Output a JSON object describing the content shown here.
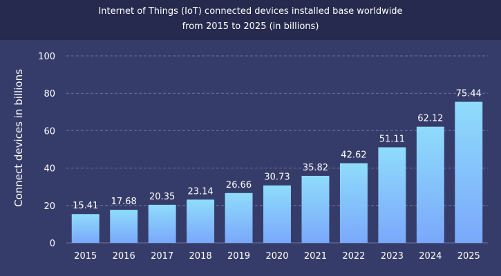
{
  "chart_data": {
    "type": "bar",
    "title": "Internet of Things (IoT) connected devices installed base worldwide",
    "subtitle": "from 2015 to 2025 (in billions)",
    "ylabel": "Connect devices in billions",
    "xlabel": "",
    "categories": [
      "2015",
      "2016",
      "2017",
      "2018",
      "2019",
      "2020",
      "2021",
      "2022",
      "2023",
      "2024",
      "2025"
    ],
    "values": [
      15.41,
      17.68,
      20.35,
      23.14,
      26.66,
      30.73,
      35.82,
      42.62,
      51.11,
      62.12,
      75.44
    ],
    "value_labels": [
      "15.41",
      "17.68",
      "20.35",
      "23.14",
      "26.66",
      "30.73",
      "35.82",
      "42.62",
      "51.11",
      "62.12",
      "75.44"
    ],
    "ylim": [
      0,
      100
    ],
    "yticks": [
      "0",
      "20",
      "40",
      "60",
      "80",
      "100"
    ],
    "grid": true,
    "colors": {
      "background": "#363c69",
      "title_bar": "#252a4e",
      "bar_top": "#8fdcfb",
      "bar_bottom": "#7aa8fb",
      "grid": "#6f74a0"
    }
  }
}
